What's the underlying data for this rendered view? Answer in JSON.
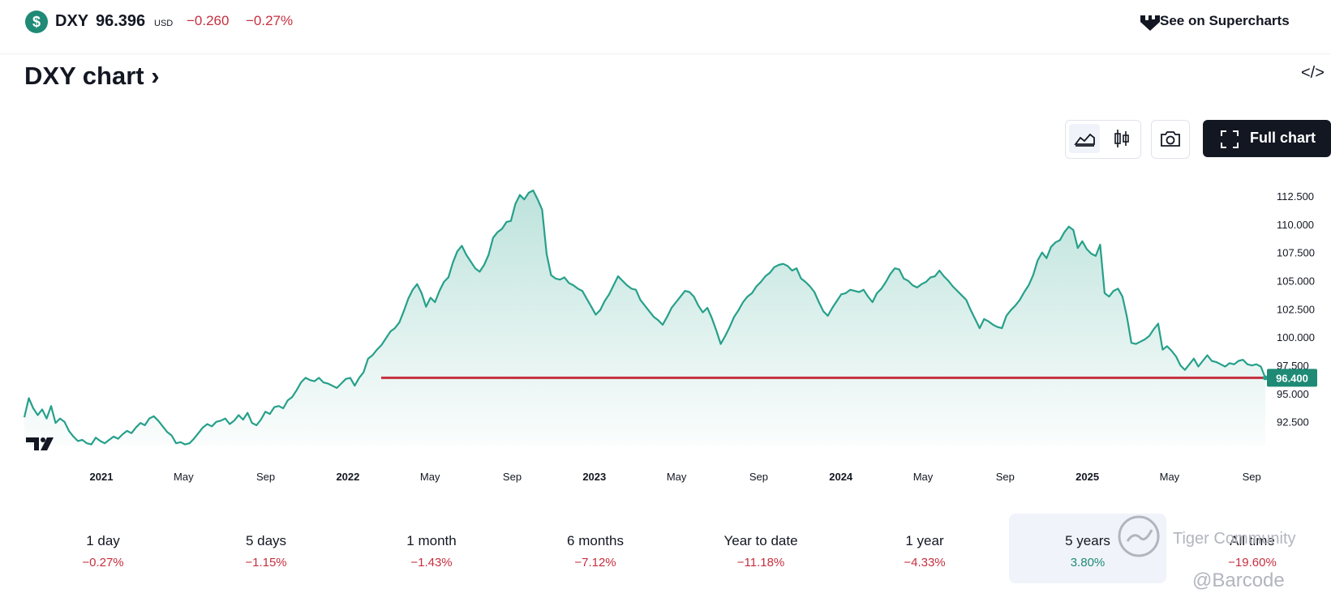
{
  "header": {
    "symbol": "DXY",
    "price": "96.396",
    "currency": "USD",
    "change": "−0.260",
    "change_percent": "−0.27%",
    "supercharts_link": "See on Supercharts"
  },
  "title": "DXY chart ›",
  "embed_icon": "</>",
  "toolbar": {
    "area_icon": "area-chart-icon",
    "candles_icon": "candlestick-icon",
    "snapshot_icon": "camera-icon",
    "full_chart_label": "Full chart"
  },
  "colors": {
    "line": "#26a08a",
    "baseline": "#c62f3e",
    "negative": "#c62f3e",
    "positive": "#1f8a75"
  },
  "chart_data": {
    "type": "area",
    "x_ticks": [
      "2021",
      "May",
      "Sep",
      "2022",
      "May",
      "Sep",
      "2023",
      "May",
      "Sep",
      "2024",
      "May",
      "Sep",
      "2025",
      "May",
      "Sep"
    ],
    "x_tick_bold": [
      true,
      false,
      false,
      true,
      false,
      false,
      true,
      false,
      false,
      true,
      false,
      false,
      true,
      false,
      false
    ],
    "y_ticks": [
      "112.500",
      "110.000",
      "107.500",
      "105.000",
      "102.500",
      "100.000",
      "97.500",
      "95.000",
      "92.500"
    ],
    "ylim": [
      90.4,
      114.8
    ],
    "last_value_label": "96.400",
    "baseline_value": 96.4,
    "series": [
      {
        "values": [
          92.9,
          94.6,
          93.7,
          93.1,
          93.6,
          92.8,
          93.9,
          92.4,
          92.8,
          92.5,
          91.7,
          91.2,
          90.8,
          90.9,
          90.6,
          90.5,
          91.1,
          90.8,
          90.6,
          90.9,
          91.2,
          91.0,
          91.4,
          91.7,
          91.5,
          92.0,
          92.4,
          92.2,
          92.8,
          93.0,
          92.6,
          92.1,
          91.6,
          91.3,
          90.6,
          90.7,
          90.5,
          90.6,
          91.0,
          91.5,
          92.0,
          92.3,
          92.1,
          92.5,
          92.6,
          92.8,
          92.3,
          92.6,
          93.1,
          92.7,
          93.3,
          92.4,
          92.2,
          92.7,
          93.4,
          93.2,
          93.8,
          93.9,
          93.7,
          94.4,
          94.7,
          95.3,
          96.0,
          96.4,
          96.2,
          96.1,
          96.4,
          96.0,
          95.9,
          95.7,
          95.5,
          95.9,
          96.3,
          96.4,
          95.7,
          96.4,
          96.9,
          98.1,
          98.4,
          98.9,
          99.3,
          99.9,
          100.5,
          100.8,
          101.3,
          102.3,
          103.4,
          104.2,
          104.7,
          103.9,
          102.7,
          103.5,
          103.1,
          104.1,
          104.9,
          105.3,
          106.6,
          107.6,
          108.1,
          107.3,
          106.7,
          106.1,
          105.8,
          106.4,
          107.3,
          108.8,
          109.3,
          109.6,
          110.2,
          110.3,
          111.8,
          112.6,
          112.2,
          112.8,
          113.0,
          112.2,
          111.3,
          107.4,
          105.5,
          105.2,
          105.1,
          105.3,
          104.8,
          104.6,
          104.3,
          104.1,
          103.4,
          102.7,
          102.0,
          102.4,
          103.2,
          103.8,
          104.6,
          105.4,
          105.0,
          104.6,
          104.3,
          104.2,
          103.3,
          102.8,
          102.3,
          101.8,
          101.5,
          101.1,
          101.8,
          102.6,
          103.1,
          103.6,
          104.1,
          104.0,
          103.6,
          102.8,
          102.2,
          102.6,
          101.7,
          100.6,
          99.4,
          100.1,
          100.9,
          101.8,
          102.4,
          103.1,
          103.6,
          103.9,
          104.5,
          104.9,
          105.4,
          105.7,
          106.2,
          106.4,
          106.5,
          106.3,
          105.9,
          106.1,
          105.2,
          104.9,
          104.5,
          104.0,
          103.1,
          102.3,
          101.9,
          102.6,
          103.2,
          103.8,
          103.9,
          104.2,
          104.1,
          104.0,
          104.2,
          103.6,
          103.1,
          103.9,
          104.3,
          104.9,
          105.6,
          106.1,
          106.0,
          105.2,
          105.0,
          104.6,
          104.4,
          104.7,
          104.9,
          105.3,
          105.4,
          105.9,
          105.4,
          105.0,
          104.5,
          104.1,
          103.7,
          103.3,
          102.4,
          101.6,
          100.8,
          101.6,
          101.4,
          101.1,
          100.9,
          100.8,
          101.9,
          102.4,
          102.8,
          103.3,
          104.0,
          104.6,
          105.5,
          106.8,
          107.5,
          107.0,
          108.0,
          108.4,
          108.6,
          109.3,
          109.8,
          109.5,
          107.9,
          108.5,
          107.8,
          107.4,
          107.2,
          108.2,
          103.9,
          103.6,
          104.1,
          104.3,
          103.6,
          101.8,
          99.5,
          99.4,
          99.6,
          99.8,
          100.1,
          100.7,
          101.2,
          98.9,
          99.2,
          98.8,
          98.3,
          97.5,
          97.1,
          97.6,
          98.1,
          97.4,
          97.9,
          98.4,
          97.9,
          97.8,
          97.6,
          97.4,
          97.7,
          97.6,
          97.9,
          98.0,
          97.6,
          97.5,
          97.6,
          97.4,
          96.4
        ]
      }
    ]
  },
  "periods": [
    {
      "label": "1 day",
      "value": "−0.27%",
      "dir": "neg"
    },
    {
      "label": "5 days",
      "value": "−1.15%",
      "dir": "neg"
    },
    {
      "label": "1 month",
      "value": "−1.43%",
      "dir": "neg"
    },
    {
      "label": "6 months",
      "value": "−7.12%",
      "dir": "neg"
    },
    {
      "label": "Year to date",
      "value": "−11.18%",
      "dir": "neg"
    },
    {
      "label": "1 year",
      "value": "−4.33%",
      "dir": "neg"
    },
    {
      "label": "5 years",
      "value": "3.80%",
      "dir": "pos",
      "active": true
    },
    {
      "label": "All time",
      "value": "−19.60%",
      "dir": "neg"
    }
  ],
  "watermark": {
    "line1": "Tiger Community",
    "line2": "@Barcode"
  }
}
